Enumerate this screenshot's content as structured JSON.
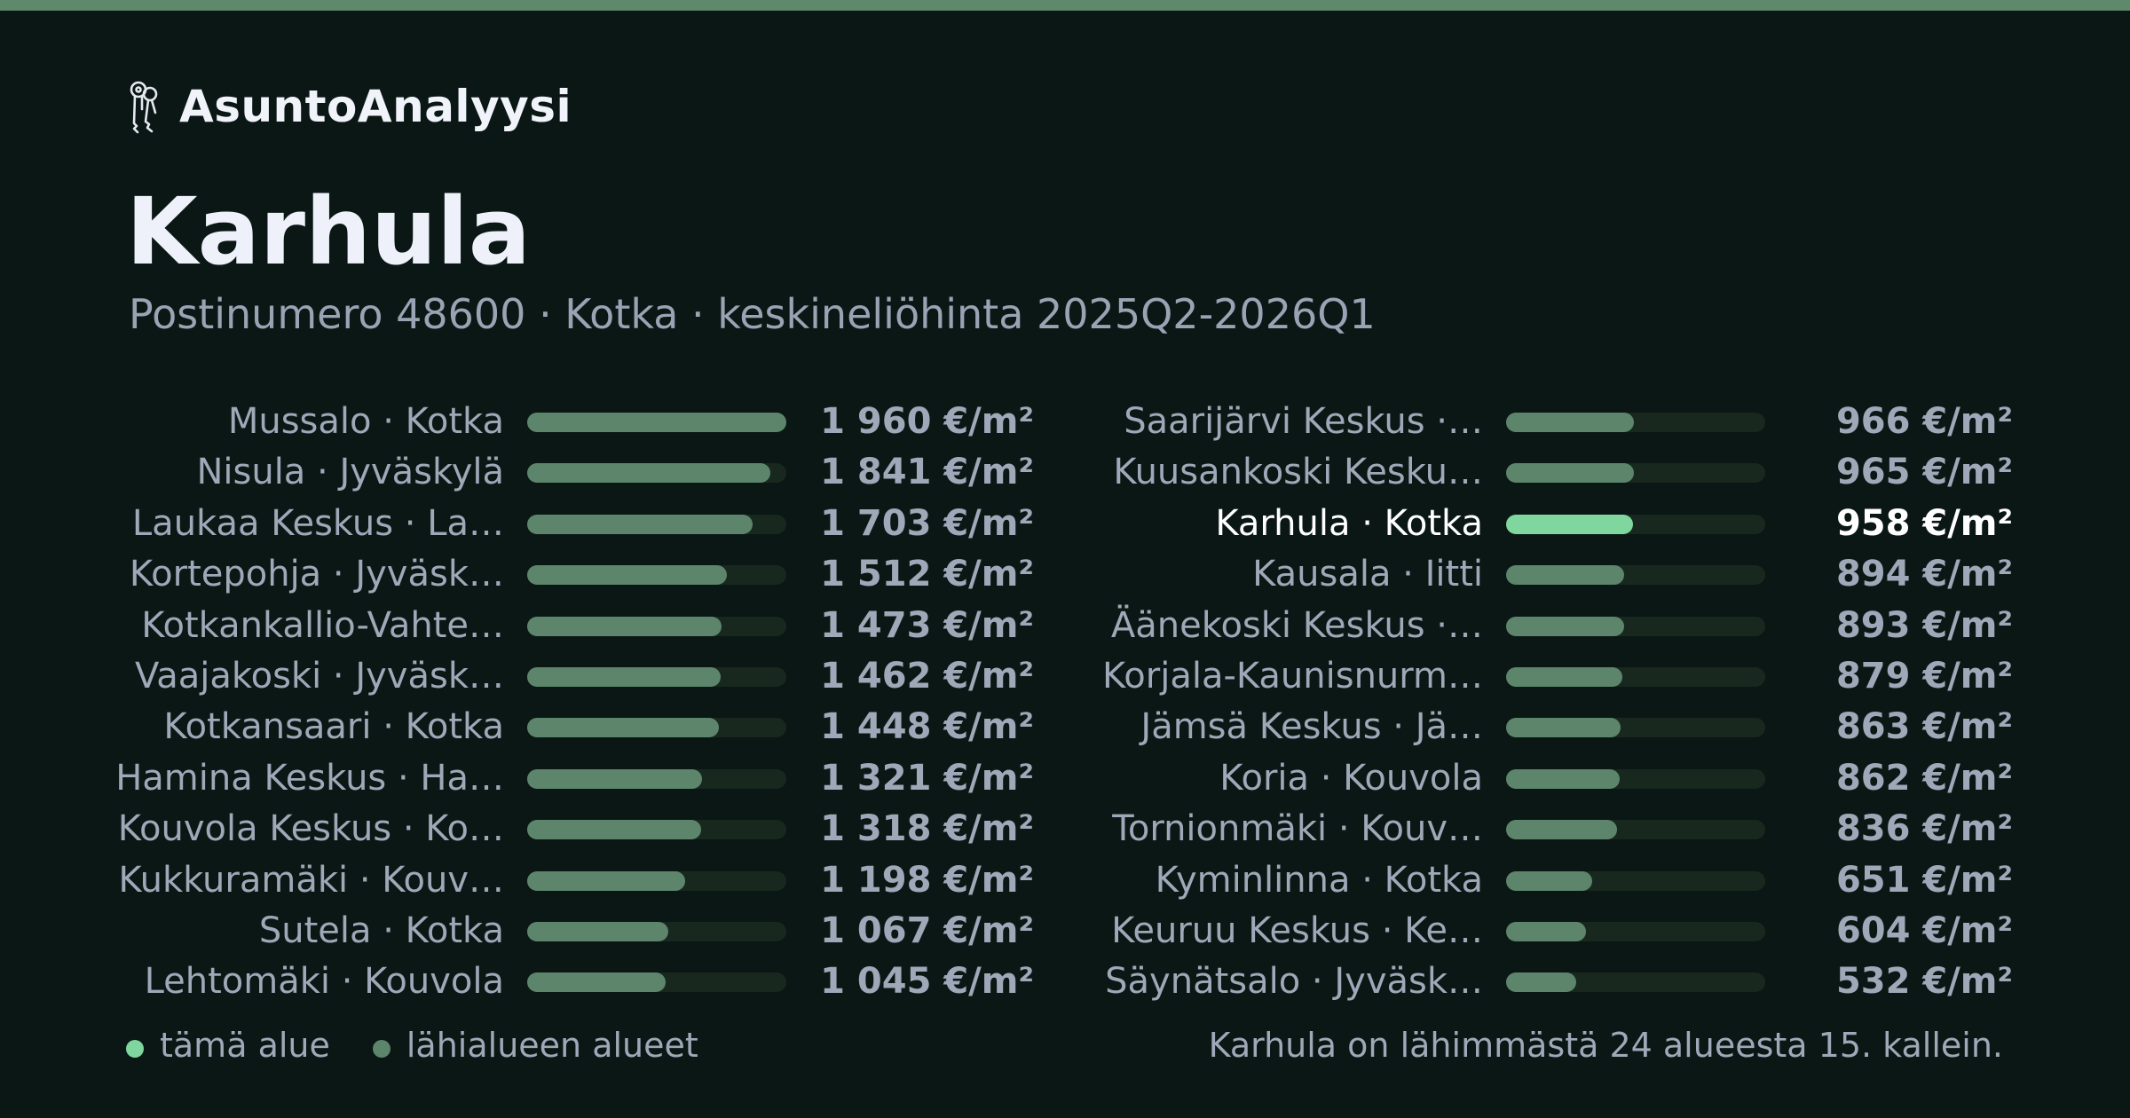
{
  "brand": {
    "name": "AsuntoAnalyysi",
    "icon": "keys-icon"
  },
  "title": "Karhula",
  "subtitle": "Postinumero 48600 · Kotka · keskineliöhinta 2025Q2-2026Q1",
  "colors": {
    "background": "#0a1714",
    "accent_bar": "#5e8a6b",
    "bar": "#5c856b",
    "bar_highlight": "#7fd69e",
    "track": "#18281f"
  },
  "chart_data": {
    "type": "bar",
    "orientation": "horizontal",
    "unit": "€/m²",
    "xlim": [
      0,
      1960
    ],
    "highlight": "Karhula · Kotka",
    "categories": [
      "Mussalo · Kotka",
      "Nisula · Jyväskylä",
      "Laukaa Keskus · La…",
      "Kortepohja · Jyväsk…",
      "Kotkankallio-Vahte…",
      "Vaajakoski · Jyväsk…",
      "Kotkansaari · Kotka",
      "Hamina Keskus · Ha…",
      "Kouvola Keskus · Ko…",
      "Kukkuramäki · Kouv…",
      "Sutela · Kotka",
      "Lehtomäki · Kouvola",
      "Saarijärvi Keskus ·…",
      "Kuusankoski Kesku…",
      "Karhula · Kotka",
      "Kausala · Iitti",
      "Äänekoski Keskus ·…",
      "Korjala-Kaunisnurm…",
      "Jämsä Keskus · Jä…",
      "Koria · Kouvola",
      "Tornionmäki · Kouv…",
      "Kyminlinna · Kotka",
      "Keuruu Keskus · Ke…",
      "Säynätsalo · Jyväsk…"
    ],
    "values": [
      1960,
      1841,
      1703,
      1512,
      1473,
      1462,
      1448,
      1321,
      1318,
      1198,
      1067,
      1045,
      966,
      965,
      958,
      894,
      893,
      879,
      863,
      862,
      836,
      651,
      604,
      532
    ],
    "value_labels": [
      "1 960 €/m²",
      "1 841 €/m²",
      "1 703 €/m²",
      "1 512 €/m²",
      "1 473 €/m²",
      "1 462 €/m²",
      "1 448 €/m²",
      "1 321 €/m²",
      "1 318 €/m²",
      "1 198 €/m²",
      "1 067 €/m²",
      "1 045 €/m²",
      "966 €/m²",
      "965 €/m²",
      "958 €/m²",
      "894 €/m²",
      "893 €/m²",
      "879 €/m²",
      "863 €/m²",
      "862 €/m²",
      "836 €/m²",
      "651 €/m²",
      "604 €/m²",
      "532 €/m²"
    ]
  },
  "legend": {
    "this_area": "tämä alue",
    "nearby_areas": "lähialueen alueet"
  },
  "note": "Karhula on lähimmästä 24 alueesta 15. kallein."
}
